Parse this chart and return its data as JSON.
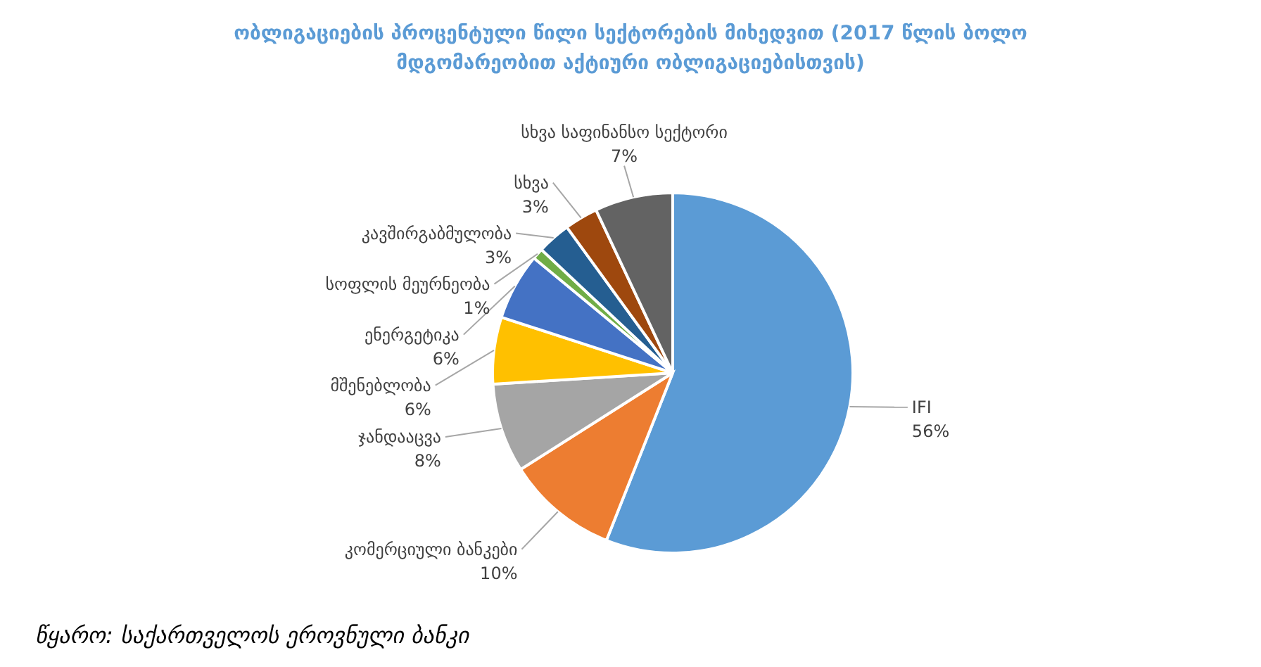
{
  "chart_data": {
    "type": "pie",
    "title": "ობლიგაციების პროცენტული წილი სექტორების მიხედვით (2017 წლის ბოლო მდგომარეობით აქტიური ობლიგაციებისთვის)",
    "categories": [
      "IFI",
      "კომერციული ბანკები",
      "ჯანდააცვა",
      "მშენებლობა",
      "ენერგეტიკა",
      "სოფლის მეურნეობა",
      "კავშირგაბმულობა",
      "სხვა",
      "სხვა საფინანსო სექტორი"
    ],
    "values": [
      56,
      10,
      8,
      6,
      6,
      1,
      3,
      3,
      7
    ],
    "colors": [
      "#5b9bd5",
      "#ed7d31",
      "#a5a5a5",
      "#ffc000",
      "#4472c4",
      "#70ad47",
      "#255e91",
      "#9e480e",
      "#636363"
    ],
    "value_labels": [
      "56%",
      "10%",
      "8%",
      "6%",
      "6%",
      "1%",
      "3%",
      "3%",
      "7%"
    ],
    "annotations": [
      "წყარო: საქართველოს ეროვნული ბანკი"
    ]
  }
}
